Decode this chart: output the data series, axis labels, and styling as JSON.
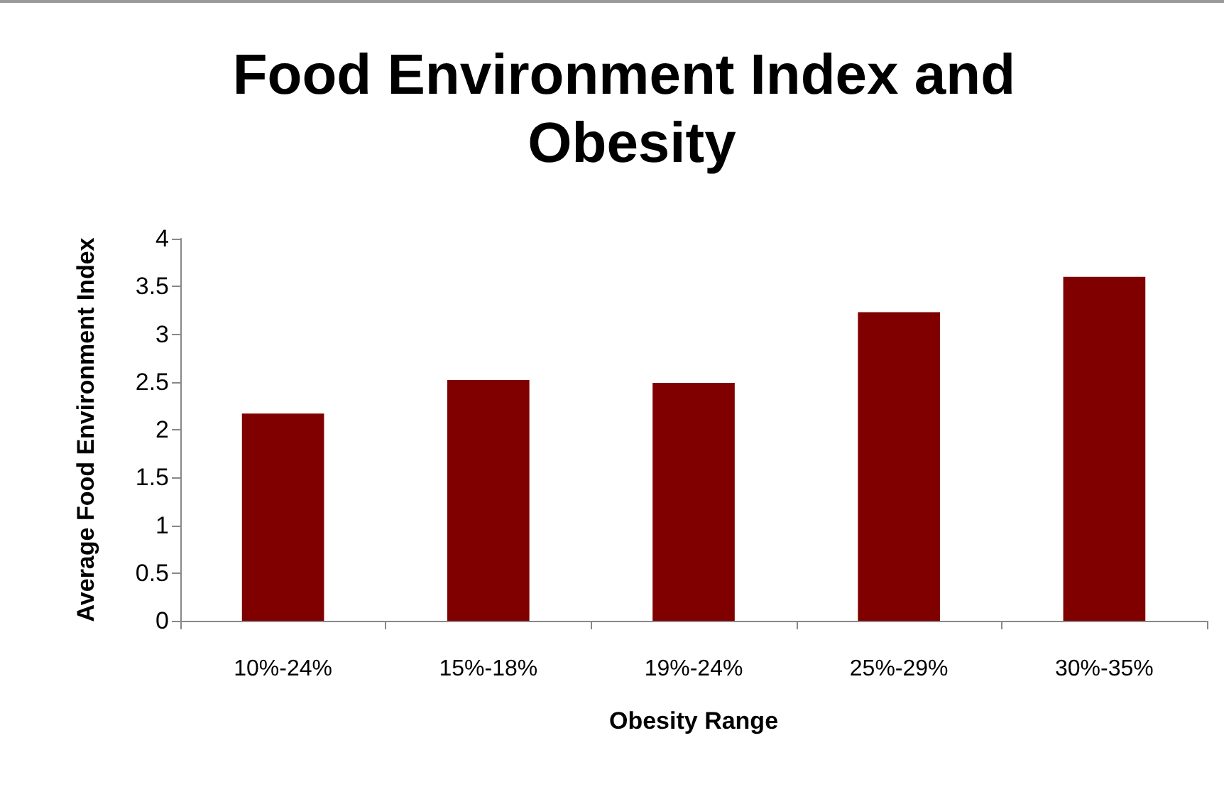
{
  "chart_data": {
    "type": "bar",
    "title": "Food Environment Index and Obesity",
    "xlabel": "Obesity Range",
    "ylabel": "Average Food Environment Index",
    "categories": [
      "10%-24%",
      "15%-18%",
      "19%-24%",
      "25%-29%",
      "30%-35%"
    ],
    "values": [
      2.17,
      2.52,
      2.49,
      3.23,
      3.6
    ],
    "color": "#800000",
    "ylim": [
      0,
      4
    ],
    "yticks": [
      0,
      0.5,
      1,
      1.5,
      2,
      2.5,
      3,
      3.5,
      4
    ],
    "grid": false
  }
}
